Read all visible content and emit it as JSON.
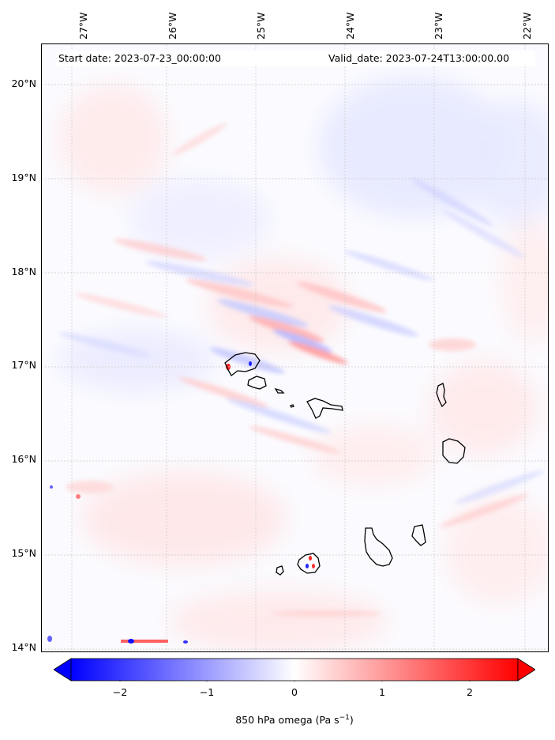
{
  "map": {
    "start_date_label": "Start date: 2023-07-23_00:00:00",
    "valid_date_label": "Valid_date: 2023-07-24T13:00:00.00",
    "longitude_labels": [
      "27°W",
      "26°W",
      "25°W",
      "24°W",
      "23°W",
      "22°W"
    ],
    "latitude_labels": [
      "20°N",
      "19°N",
      "18°N",
      "17°N",
      "16°N",
      "15°N",
      "14°N"
    ],
    "variable": "850 hPa omega",
    "units": "Pa s⁻¹",
    "colormap": "bwr",
    "colors": {
      "negative": "#0000ff",
      "zero": "#ffffff",
      "positive": "#ff0000",
      "coast": "#000000",
      "grid": "#c8c8c8"
    }
  },
  "colorbar": {
    "label_text": "850 hPa omega (Pa s",
    "label_sup": "−1",
    "label_close": ")",
    "ticks": [
      "−2",
      "−1",
      "0",
      "1",
      "2"
    ],
    "range": [
      -2.6,
      2.6
    ],
    "extend": "both"
  }
}
